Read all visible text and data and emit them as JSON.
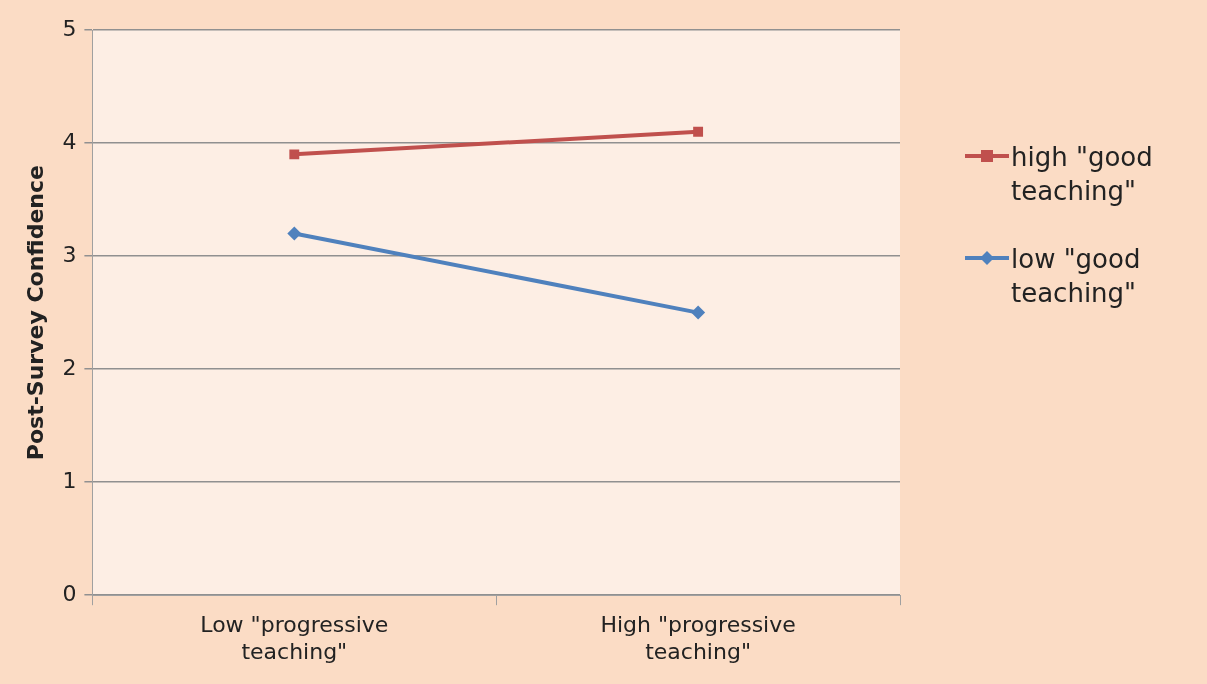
{
  "chart_data": {
    "type": "line",
    "ylabel": "Post-Survey Confidence",
    "categories": [
      "Low \"progressive teaching\"",
      "High \"progressive teaching\""
    ],
    "series": [
      {
        "name": "high \"good teaching\"",
        "color": "#c0504d",
        "marker": "square",
        "values": [
          3.9,
          4.1
        ]
      },
      {
        "name": "low \"good teaching\"",
        "color": "#4f81bd",
        "marker": "diamond",
        "values": [
          3.2,
          2.5
        ]
      }
    ],
    "ylim": [
      0,
      5
    ],
    "yticks": [
      0,
      1,
      2,
      3,
      4,
      5
    ],
    "grid": "y",
    "legend": "right",
    "line_style": "solid"
  }
}
